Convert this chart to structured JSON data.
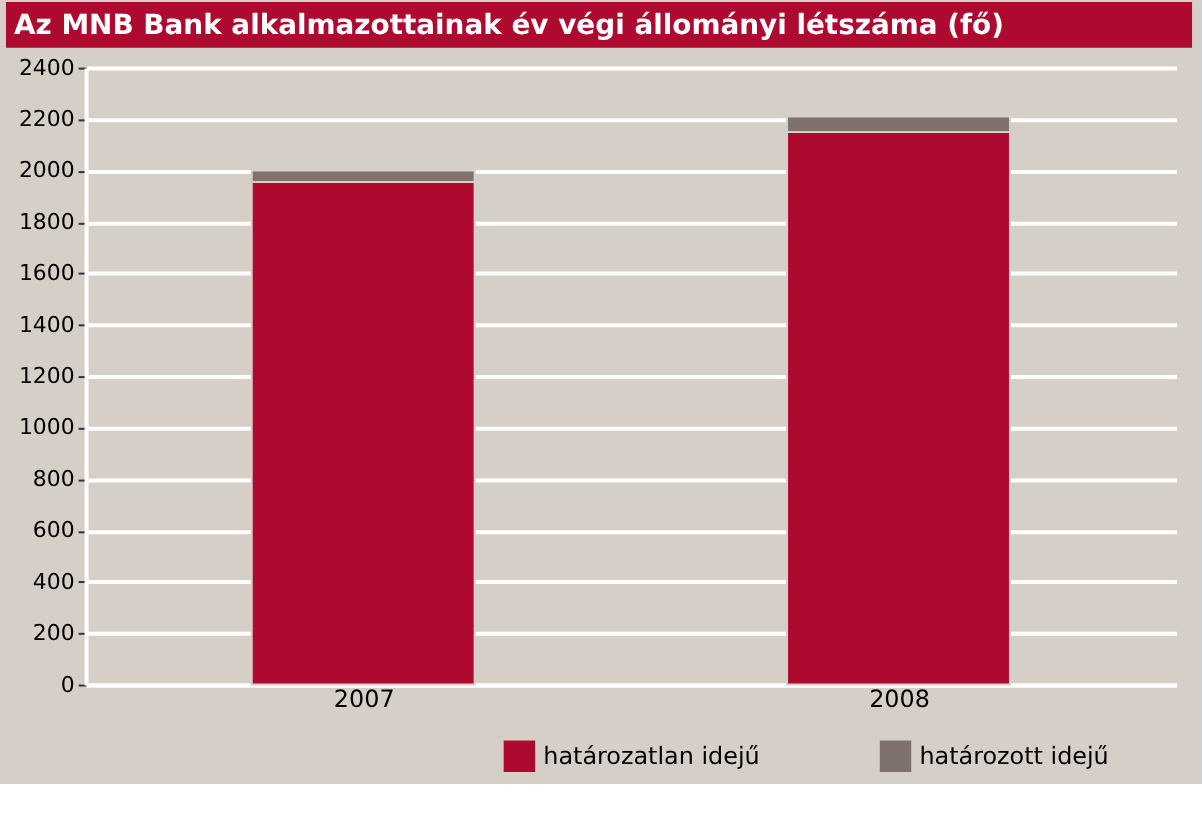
{
  "chart_data": {
    "type": "bar",
    "stacked": true,
    "title": "Az MNB Bank alkalmazottainak év végi állományi létszáma (fő)",
    "categories": [
      "2007",
      "2008"
    ],
    "series": [
      {
        "name": "határozatlan idejű",
        "color": "#ae0a30",
        "values": [
          1955,
          2150
        ]
      },
      {
        "name": "határozott idejű",
        "color": "#7f716c",
        "values": [
          45,
          60
        ]
      }
    ],
    "ylim": [
      0,
      2400
    ],
    "yticks": [
      0,
      200,
      400,
      600,
      800,
      1000,
      1200,
      1400,
      1600,
      1800,
      2000,
      2200,
      2400
    ],
    "grid": "y",
    "legend": "bottom right"
  }
}
